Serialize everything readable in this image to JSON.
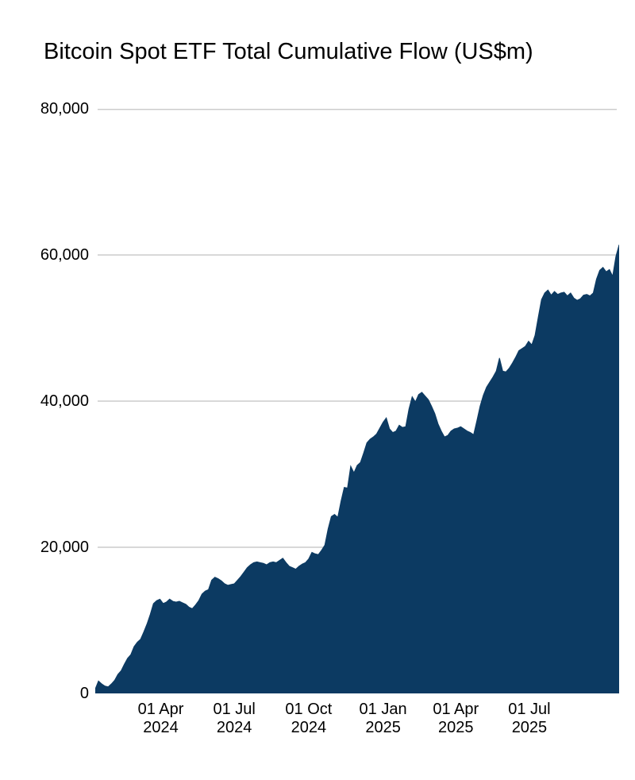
{
  "chart_data": {
    "type": "area",
    "title": "Bitcoin Spot ETF Total Cumulative Flow (US$m)",
    "series_name": "Total Cumulative Flow",
    "units": "US$m",
    "fill_color": "#0c3a62",
    "grid_color": "#cccccc",
    "text_color": "#000000",
    "background_color": "#ffffff",
    "legend": false,
    "grid": true,
    "ylim": [
      0,
      80000
    ],
    "y_ticks": [
      {
        "value": 0,
        "label": "0"
      },
      {
        "value": 20000,
        "label": "20,000"
      },
      {
        "value": 40000,
        "label": "40,000"
      },
      {
        "value": 60000,
        "label": "60,000"
      },
      {
        "value": 80000,
        "label": "80,000"
      }
    ],
    "x_start_date": "2024-01-11",
    "x_interval_days": 4,
    "x_total_days": 648,
    "x_ticks": [
      {
        "day": 81,
        "line1": "01 Apr",
        "line2": "2024"
      },
      {
        "day": 172,
        "line1": "01 Jul",
        "line2": "2024"
      },
      {
        "day": 264,
        "line1": "01 Oct",
        "line2": "2024"
      },
      {
        "day": 356,
        "line1": "01 Jan",
        "line2": "2025"
      },
      {
        "day": 446,
        "line1": "01 Apr",
        "line2": "2025"
      },
      {
        "day": 537,
        "line1": "01 Jul",
        "line2": "2025"
      }
    ],
    "values": [
      600,
      1700,
      1300,
      1000,
      900,
      1300,
      1800,
      2600,
      3100,
      4000,
      4800,
      5300,
      6400,
      7000,
      7400,
      8400,
      9500,
      10800,
      12300,
      12700,
      12900,
      12300,
      12500,
      12900,
      12600,
      12500,
      12600,
      12400,
      12200,
      11800,
      11600,
      12100,
      12700,
      13600,
      14000,
      14200,
      15500,
      15900,
      15700,
      15400,
      15000,
      14800,
      14900,
      15000,
      15500,
      16000,
      16600,
      17200,
      17600,
      17900,
      18000,
      17900,
      17800,
      17600,
      17900,
      18000,
      17900,
      18200,
      18500,
      17900,
      17400,
      17200,
      17000,
      17400,
      17700,
      17900,
      18400,
      19300,
      19100,
      19000,
      19600,
      20300,
      22500,
      24200,
      24500,
      24100,
      26300,
      28200,
      28100,
      31100,
      30200,
      31200,
      31600,
      32900,
      34300,
      34800,
      35100,
      35500,
      36300,
      37100,
      37700,
      36200,
      35700,
      35900,
      36700,
      36400,
      36500,
      38900,
      40600,
      39900,
      40900,
      41200,
      40700,
      40200,
      39300,
      38300,
      36900,
      35900,
      35100,
      35300,
      35900,
      36200,
      36300,
      36500,
      36200,
      35900,
      35700,
      35400,
      37300,
      39300,
      40800,
      41900,
      42600,
      43300,
      44100,
      45900,
      44100,
      44000,
      44500,
      45200,
      46000,
      46900,
      47200,
      47500,
      48200,
      47700,
      49000,
      51500,
      53900,
      54800,
      55200,
      54500,
      55000,
      54600,
      54800,
      54900,
      54400,
      54800,
      54100,
      53800,
      54000,
      54500,
      54600,
      54400,
      54800,
      56700,
      57900,
      58300,
      57700,
      58000,
      57100,
      59800,
      61400
    ]
  }
}
